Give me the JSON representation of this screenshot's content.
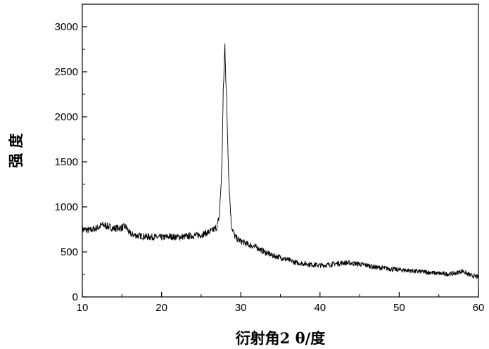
{
  "chart_data": {
    "type": "line",
    "title": "",
    "xlabel": "衍射角2 θ/度",
    "ylabel": "强 度",
    "xlim": [
      10,
      60
    ],
    "ylim": [
      0,
      3250
    ],
    "x_ticks": [
      10,
      20,
      30,
      40,
      50,
      60
    ],
    "y_ticks": [
      0,
      500,
      1000,
      1500,
      2000,
      2500,
      3000
    ],
    "x_tick_labels": [
      "10",
      "20",
      "30",
      "40",
      "50",
      "60"
    ],
    "y_tick_labels": [
      "0",
      "500",
      "1000",
      "1500",
      "2000",
      "2500",
      "3000"
    ],
    "grid": false,
    "legend": "none",
    "line_color": "#000000",
    "series": [
      {
        "x": [
          10,
          11,
          12,
          12.5,
          13,
          14,
          15,
          15.5,
          16,
          16.5,
          17,
          18,
          19,
          20,
          21,
          22,
          23,
          24,
          25,
          26,
          26.5,
          27,
          27.3,
          27.6,
          27.8,
          28.0,
          28.2,
          28.5,
          28.8,
          29.2,
          29.6,
          30,
          31,
          32,
          33,
          34,
          35,
          36,
          37,
          38,
          39,
          40,
          41,
          42,
          43,
          44,
          45,
          46,
          47,
          48,
          49,
          50,
          51,
          52,
          53,
          54,
          55,
          56,
          57,
          57.5,
          58,
          58.5,
          59,
          60
        ],
        "y": [
          750,
          740,
          770,
          800,
          790,
          760,
          770,
          780,
          700,
          690,
          680,
          670,
          665,
          660,
          670,
          665,
          670,
          680,
          690,
          720,
          740,
          780,
          900,
          1400,
          2300,
          2800,
          2200,
          1300,
          800,
          680,
          640,
          620,
          580,
          550,
          500,
          460,
          440,
          410,
          380,
          370,
          360,
          350,
          355,
          370,
          380,
          375,
          365,
          350,
          330,
          320,
          310,
          300,
          295,
          285,
          280,
          270,
          260,
          255,
          260,
          275,
          290,
          260,
          240,
          220
        ]
      }
    ]
  }
}
